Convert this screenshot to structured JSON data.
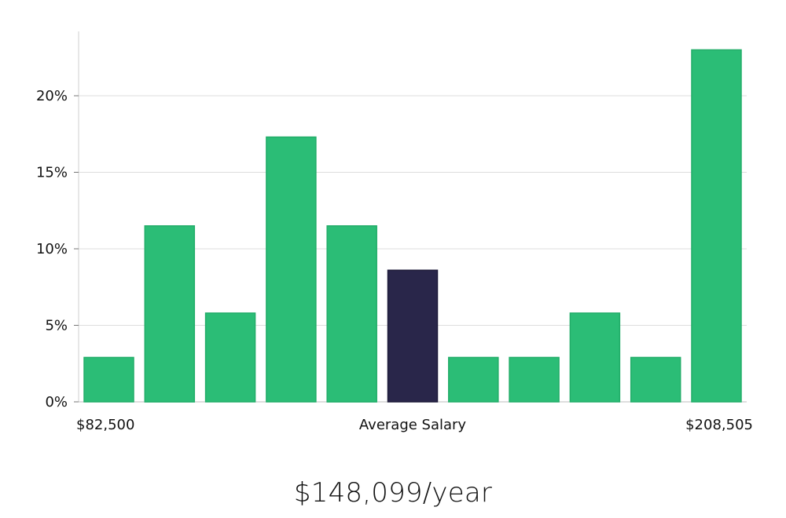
{
  "chart_data": {
    "type": "bar",
    "title": "",
    "xlabel": "",
    "ylabel": "",
    "ylim": [
      0,
      24
    ],
    "y_ticks": [
      {
        "value": 0,
        "label": "0%"
      },
      {
        "value": 5,
        "label": "5%"
      },
      {
        "value": 10,
        "label": "10%"
      },
      {
        "value": 15,
        "label": "15%"
      },
      {
        "value": 20,
        "label": "20%"
      }
    ],
    "values": [
      2.9,
      11.5,
      5.8,
      17.3,
      11.5,
      8.6,
      2.9,
      2.9,
      5.8,
      2.9,
      23.0
    ],
    "highlight_index": 5,
    "bar_color": "#2bbd76",
    "highlight_color": "#29264a",
    "grid": "horizontal",
    "x_labels": {
      "min": "$82,500",
      "center": "Average Salary",
      "max": "$208,505"
    }
  },
  "average_salary_text": "$148,099/year"
}
